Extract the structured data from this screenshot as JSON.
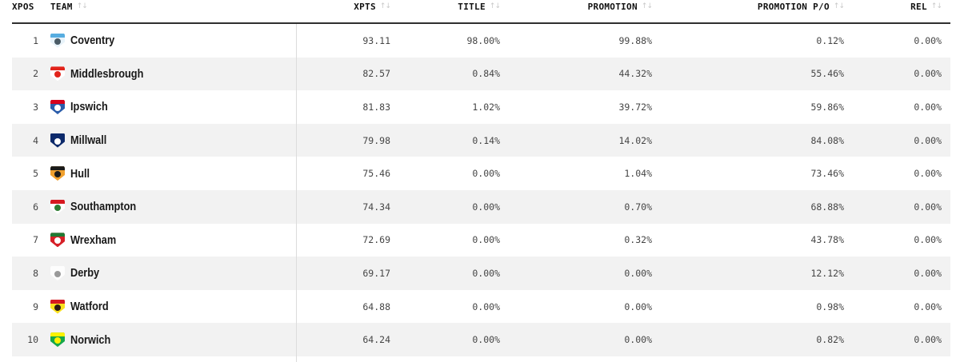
{
  "table": {
    "sort_icon": "↑↓",
    "columns": [
      {
        "key": "xpos",
        "label": "XPOS"
      },
      {
        "key": "team",
        "label": "TEAM"
      },
      {
        "key": "xpts",
        "label": "XPTS"
      },
      {
        "key": "title",
        "label": "TITLE"
      },
      {
        "key": "promotion",
        "label": "PROMOTION"
      },
      {
        "key": "promotion_po",
        "label": "PROMOTION P/O"
      },
      {
        "key": "rel",
        "label": "REL"
      }
    ],
    "rows": [
      {
        "xpos": "1",
        "team": "Coventry",
        "xpts": "93.11",
        "title": "98.00%",
        "promotion": "99.88%",
        "promotion_po": "0.12%",
        "rel": "0.00%",
        "badge": {
          "base": "#e8f3fa",
          "band": "#57ade0",
          "emblem": "#4a5b66"
        }
      },
      {
        "xpos": "2",
        "team": "Middlesbrough",
        "xpts": "82.57",
        "title": "0.84%",
        "promotion": "44.32%",
        "promotion_po": "55.46%",
        "rel": "0.00%",
        "badge": {
          "base": "#ffffff",
          "band": "#e2231a",
          "emblem": "#e2231a"
        }
      },
      {
        "xpos": "3",
        "team": "Ipswich",
        "xpts": "81.83",
        "title": "1.02%",
        "promotion": "39.72%",
        "promotion_po": "59.86%",
        "rel": "0.00%",
        "badge": {
          "base": "#2a5caa",
          "band": "#d6001c",
          "emblem": "#ffffff"
        }
      },
      {
        "xpos": "4",
        "team": "Millwall",
        "xpts": "79.98",
        "title": "0.14%",
        "promotion": "14.02%",
        "promotion_po": "84.08%",
        "rel": "0.00%",
        "badge": {
          "base": "#0d2a6b",
          "band": "#0d2a6b",
          "emblem": "#ffffff"
        }
      },
      {
        "xpos": "5",
        "team": "Hull",
        "xpts": "75.46",
        "title": "0.00%",
        "promotion": "1.04%",
        "promotion_po": "73.46%",
        "rel": "0.00%",
        "badge": {
          "base": "#f0a02e",
          "band": "#1a1a1a",
          "emblem": "#1a1a1a"
        }
      },
      {
        "xpos": "6",
        "team": "Southampton",
        "xpts": "74.34",
        "title": "0.00%",
        "promotion": "0.70%",
        "promotion_po": "68.88%",
        "rel": "0.00%",
        "badge": {
          "base": "#ffffff",
          "band": "#d71920",
          "emblem": "#2e7d32"
        }
      },
      {
        "xpos": "7",
        "team": "Wrexham",
        "xpts": "72.69",
        "title": "0.00%",
        "promotion": "0.32%",
        "promotion_po": "43.78%",
        "rel": "0.00%",
        "badge": {
          "base": "#d62027",
          "band": "#1f7a33",
          "emblem": "#ffffff"
        }
      },
      {
        "xpos": "8",
        "team": "Derby",
        "xpts": "69.17",
        "title": "0.00%",
        "promotion": "0.00%",
        "promotion_po": "12.12%",
        "rel": "0.00%",
        "badge": {
          "base": "#fdfdfd",
          "band": "#fdfdfd",
          "emblem": "#9a9a9a"
        }
      },
      {
        "xpos": "9",
        "team": "Watford",
        "xpts": "64.88",
        "title": "0.00%",
        "promotion": "0.00%",
        "promotion_po": "0.98%",
        "rel": "0.00%",
        "badge": {
          "base": "#f9e11e",
          "band": "#d61a21",
          "emblem": "#2b1b12"
        }
      },
      {
        "xpos": "10",
        "team": "Norwich",
        "xpts": "64.24",
        "title": "0.00%",
        "promotion": "0.00%",
        "promotion_po": "0.82%",
        "rel": "0.00%",
        "badge": {
          "base": "#16a74a",
          "band": "#fff200",
          "emblem": "#fff200"
        }
      }
    ]
  }
}
